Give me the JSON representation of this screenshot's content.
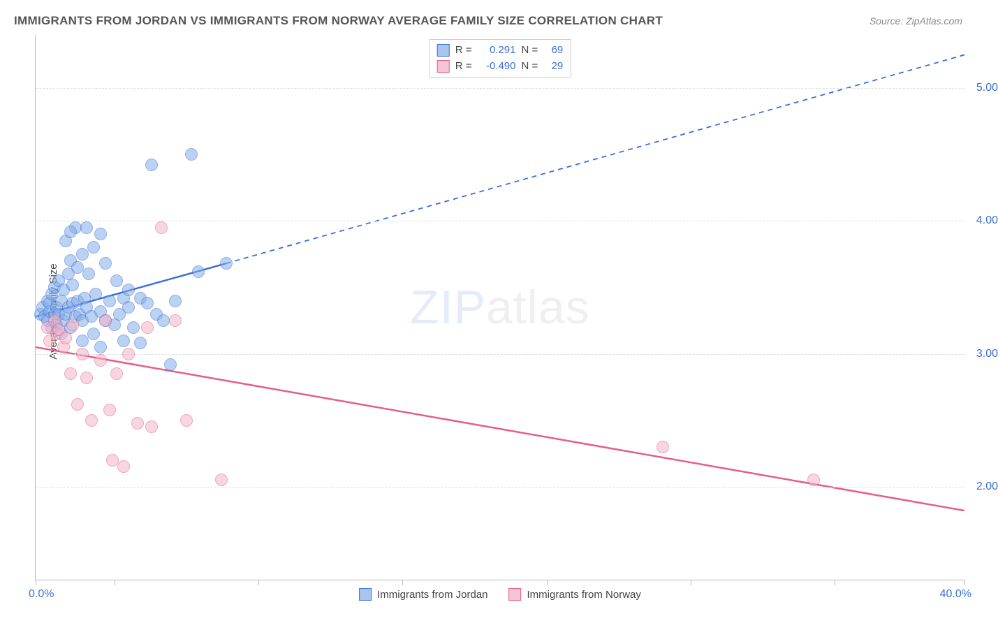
{
  "title": "IMMIGRANTS FROM JORDAN VS IMMIGRANTS FROM NORWAY AVERAGE FAMILY SIZE CORRELATION CHART",
  "source_prefix": "Source: ",
  "source_name": "ZipAtlas.com",
  "ylabel": "Average Family Size",
  "watermark_a": "ZIP",
  "watermark_b": "atlas",
  "chart": {
    "type": "scatter",
    "background_color": "#ffffff",
    "grid_color": "#dddddd",
    "xlim": [
      0,
      40
    ],
    "ylim": [
      1.3,
      5.4
    ],
    "xaxis_min_label": "0.0%",
    "xaxis_max_label": "40.0%",
    "xtick_positions_pct": [
      0,
      8.5,
      24,
      39.5,
      55,
      70.5,
      86,
      100
    ],
    "yticks": [
      {
        "v": 2.0,
        "label": "2.00"
      },
      {
        "v": 3.0,
        "label": "3.00"
      },
      {
        "v": 4.0,
        "label": "4.00"
      },
      {
        "v": 5.0,
        "label": "5.00"
      }
    ],
    "series": [
      {
        "name": "Immigrants from Jordan",
        "legend_label": "Immigrants from Jordan",
        "color_fill": "#85aee8",
        "color_stroke": "#3a6fd8",
        "r_label": "R =",
        "r_value": "0.291",
        "n_label": "N =",
        "n_value": "69",
        "trend": {
          "x1": 0,
          "y1": 3.28,
          "x2": 8.2,
          "y2": 3.68,
          "ext_x": 40,
          "ext_y": 5.25,
          "dash": true
        },
        "points": [
          [
            0.2,
            3.3
          ],
          [
            0.3,
            3.35
          ],
          [
            0.4,
            3.28
          ],
          [
            0.5,
            3.4
          ],
          [
            0.5,
            3.25
          ],
          [
            0.6,
            3.32
          ],
          [
            0.6,
            3.38
          ],
          [
            0.7,
            3.2
          ],
          [
            0.7,
            3.45
          ],
          [
            0.8,
            3.3
          ],
          [
            0.8,
            3.5
          ],
          [
            0.9,
            3.35
          ],
          [
            0.9,
            3.22
          ],
          [
            1.0,
            3.55
          ],
          [
            1.0,
            3.3
          ],
          [
            1.1,
            3.4
          ],
          [
            1.1,
            3.15
          ],
          [
            1.2,
            3.48
          ],
          [
            1.2,
            3.25
          ],
          [
            1.3,
            3.85
          ],
          [
            1.3,
            3.3
          ],
          [
            1.4,
            3.6
          ],
          [
            1.4,
            3.35
          ],
          [
            1.5,
            3.7
          ],
          [
            1.5,
            3.2
          ],
          [
            1.6,
            3.38
          ],
          [
            1.6,
            3.52
          ],
          [
            1.7,
            3.95
          ],
          [
            1.7,
            3.28
          ],
          [
            1.8,
            3.65
          ],
          [
            1.8,
            3.4
          ],
          [
            1.9,
            3.3
          ],
          [
            2.0,
            3.75
          ],
          [
            2.0,
            3.25
          ],
          [
            2.1,
            3.42
          ],
          [
            2.2,
            3.95
          ],
          [
            2.2,
            3.35
          ],
          [
            2.3,
            3.6
          ],
          [
            2.4,
            3.28
          ],
          [
            2.5,
            3.8
          ],
          [
            2.5,
            3.15
          ],
          [
            2.6,
            3.45
          ],
          [
            2.8,
            3.9
          ],
          [
            2.8,
            3.32
          ],
          [
            3.0,
            3.25
          ],
          [
            3.0,
            3.68
          ],
          [
            3.2,
            3.4
          ],
          [
            3.4,
            3.22
          ],
          [
            3.5,
            3.55
          ],
          [
            3.6,
            3.3
          ],
          [
            3.8,
            3.42
          ],
          [
            3.8,
            3.1
          ],
          [
            4.0,
            3.35
          ],
          [
            4.0,
            3.48
          ],
          [
            4.2,
            3.2
          ],
          [
            4.5,
            3.42
          ],
          [
            4.5,
            3.08
          ],
          [
            4.8,
            3.38
          ],
          [
            5.0,
            4.42
          ],
          [
            5.2,
            3.3
          ],
          [
            5.5,
            3.25
          ],
          [
            5.8,
            2.92
          ],
          [
            6.0,
            3.4
          ],
          [
            6.7,
            4.5
          ],
          [
            7.0,
            3.62
          ],
          [
            8.2,
            3.68
          ],
          [
            1.5,
            3.92
          ],
          [
            2.0,
            3.1
          ],
          [
            2.8,
            3.05
          ]
        ]
      },
      {
        "name": "Immigrants from Norway",
        "legend_label": "Immigrants from Norway",
        "color_fill": "#f4b6c8",
        "color_stroke": "#e85b8a",
        "r_label": "R =",
        "r_value": "-0.490",
        "n_label": "N =",
        "n_value": "29",
        "trend": {
          "x1": 0,
          "y1": 3.05,
          "x2": 40,
          "y2": 1.82,
          "dash": false
        },
        "points": [
          [
            0.5,
            3.2
          ],
          [
            0.6,
            3.1
          ],
          [
            0.8,
            3.25
          ],
          [
            0.9,
            3.15
          ],
          [
            1.0,
            3.18
          ],
          [
            1.2,
            3.05
          ],
          [
            1.3,
            3.12
          ],
          [
            1.5,
            2.85
          ],
          [
            1.6,
            3.22
          ],
          [
            1.8,
            2.62
          ],
          [
            2.0,
            3.0
          ],
          [
            2.2,
            2.82
          ],
          [
            2.4,
            2.5
          ],
          [
            2.8,
            2.95
          ],
          [
            3.0,
            3.25
          ],
          [
            3.2,
            2.58
          ],
          [
            3.3,
            2.2
          ],
          [
            3.5,
            2.85
          ],
          [
            3.8,
            2.15
          ],
          [
            4.0,
            3.0
          ],
          [
            4.4,
            2.48
          ],
          [
            4.8,
            3.2
          ],
          [
            5.0,
            2.45
          ],
          [
            5.4,
            3.95
          ],
          [
            6.0,
            3.25
          ],
          [
            6.5,
            2.5
          ],
          [
            8.0,
            2.05
          ],
          [
            27.0,
            2.3
          ],
          [
            33.5,
            2.05
          ]
        ]
      }
    ]
  }
}
